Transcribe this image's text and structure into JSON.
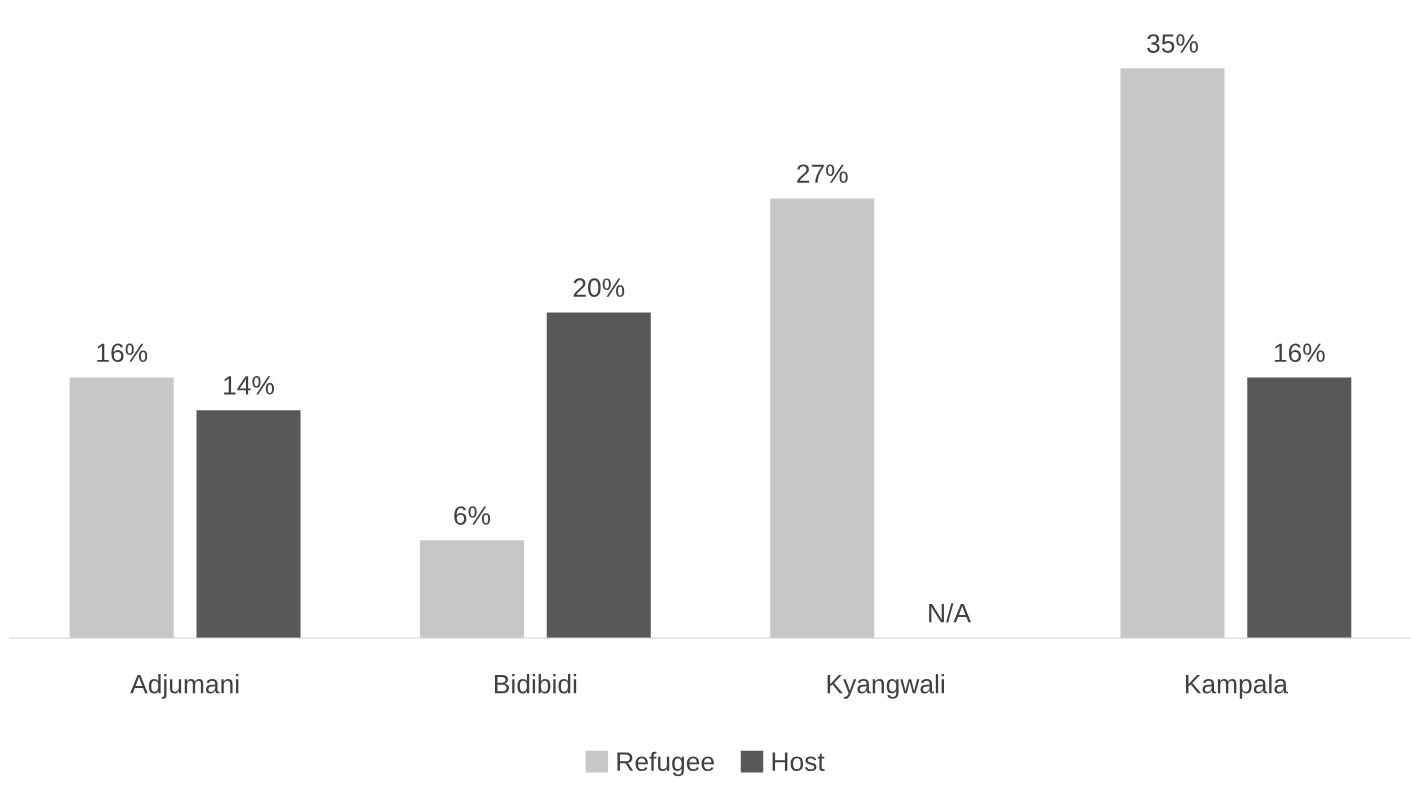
{
  "chart_data": {
    "type": "bar",
    "categories": [
      "Adjumani",
      "Bidibidi",
      "Kyangwali",
      "Kampala"
    ],
    "series": [
      {
        "name": "Refugee",
        "color": "#c6c7c9",
        "values": [
          16,
          6,
          27,
          35
        ],
        "value_labels": [
          "16%",
          "6%",
          "27%",
          "35%"
        ]
      },
      {
        "name": "Host",
        "color": "#58585a",
        "values": [
          14,
          20,
          null,
          16
        ],
        "value_labels": [
          "14%",
          "20%",
          "N/A",
          "16%"
        ]
      }
    ],
    "legend": "bottom",
    "grid": false
  }
}
